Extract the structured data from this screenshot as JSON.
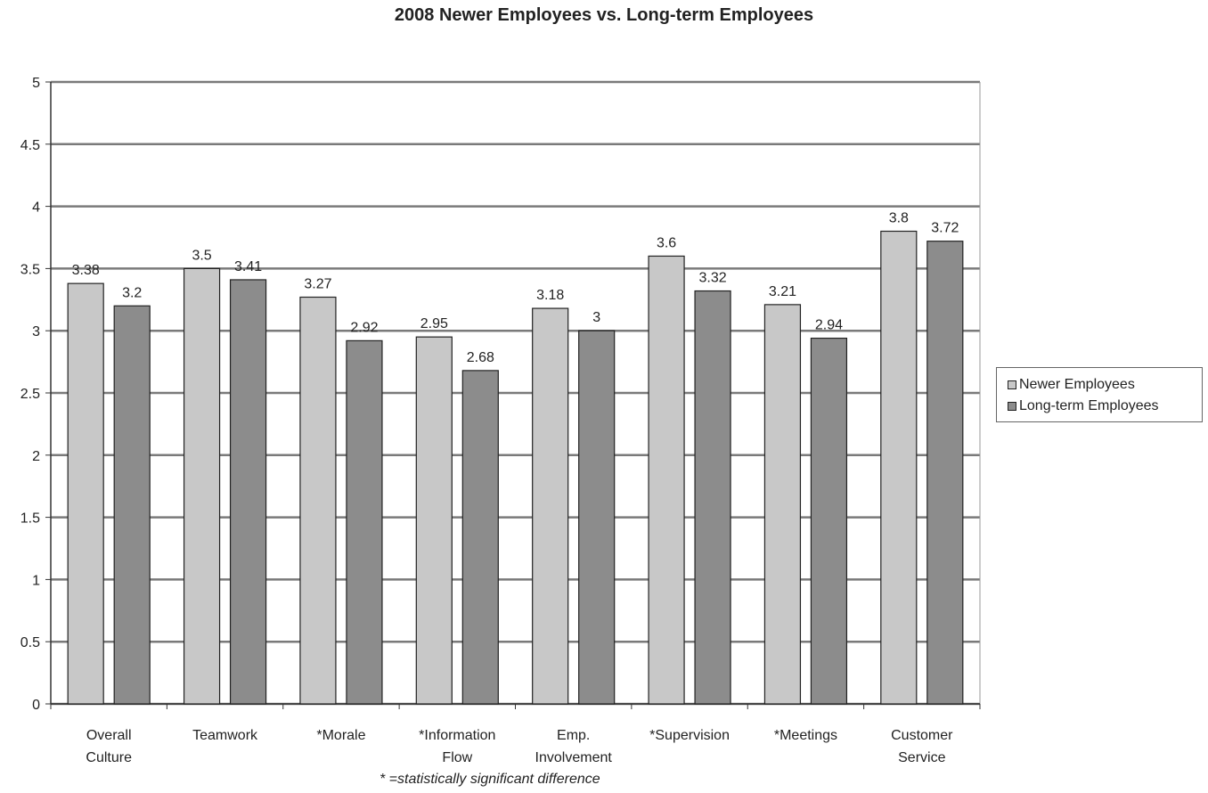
{
  "chart_data": {
    "type": "bar",
    "title": "2008 Newer Employees vs. Long-term Employees",
    "xlabel": "",
    "ylabel": "",
    "categories": [
      [
        "Overall",
        "Culture"
      ],
      [
        "Teamwork"
      ],
      [
        "*Morale"
      ],
      [
        "*Information",
        "Flow"
      ],
      [
        "Emp.",
        "Involvement"
      ],
      [
        "*Supervision"
      ],
      [
        "*Meetings"
      ],
      [
        "Customer",
        "Service"
      ]
    ],
    "series": [
      {
        "name": "Newer Employees",
        "color": "#c8c8c8",
        "values": [
          3.38,
          3.5,
          3.27,
          2.95,
          3.18,
          3.6,
          3.21,
          3.8
        ],
        "labels": [
          "3.38",
          "3.5",
          "3.27",
          "2.95",
          "3.18",
          "3.6",
          "3.21",
          "3.8"
        ]
      },
      {
        "name": "Long-term Employees",
        "color": "#8c8c8c",
        "values": [
          3.2,
          3.41,
          2.92,
          2.68,
          3.0,
          3.32,
          2.94,
          3.72
        ],
        "labels": [
          "3.2",
          "3.41",
          "2.92",
          "2.68",
          "3",
          "3.32",
          "2.94",
          "3.72"
        ]
      }
    ],
    "ylim": [
      0,
      5
    ],
    "yticks": [
      "0",
      "0.5",
      "1",
      "1.5",
      "2",
      "2.5",
      "3",
      "3.5",
      "4",
      "4.5",
      "5"
    ],
    "grid": true,
    "legend_position": "right",
    "footnote": "* =statistically significant difference"
  }
}
